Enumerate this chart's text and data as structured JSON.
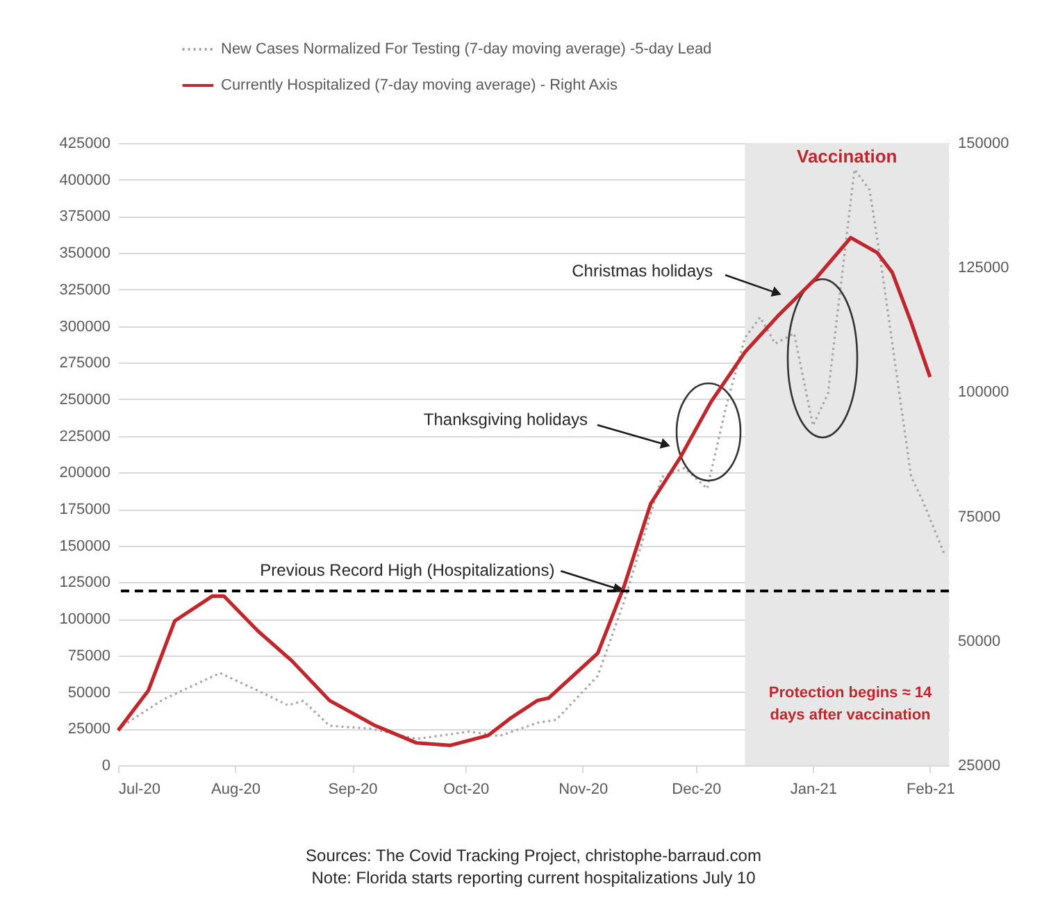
{
  "chart_data": {
    "type": "line",
    "xlim": [
      "2020-07-01",
      "2021-02-06"
    ],
    "xticks": [
      {
        "value": "2020-07-01",
        "label": "Jul-20"
      },
      {
        "value": "2020-08-01",
        "label": "Aug-20"
      },
      {
        "value": "2020-09-01",
        "label": "Sep-20"
      },
      {
        "value": "2020-10-01",
        "label": "Oct-20"
      },
      {
        "value": "2020-11-01",
        "label": "Nov-20"
      },
      {
        "value": "2020-12-01",
        "label": "Dec-20"
      },
      {
        "value": "2021-01-01",
        "label": "Jan-21"
      },
      {
        "value": "2021-02-01",
        "label": "Feb-21"
      }
    ],
    "ylim": [
      0,
      425000
    ],
    "yticks": [
      0,
      25000,
      50000,
      75000,
      100000,
      125000,
      150000,
      175000,
      200000,
      225000,
      250000,
      275000,
      300000,
      325000,
      350000,
      375000,
      400000,
      425000
    ],
    "y2lim": [
      25000,
      150000
    ],
    "y2ticks": [
      25000,
      50000,
      75000,
      100000,
      125000,
      150000
    ],
    "grid": "y",
    "legend": "top",
    "series": [
      {
        "name": "New Cases Normalized For Testing (7-day moving average) -5-day Lead",
        "color": "#a6a6a6",
        "line_style": "dotted",
        "x": [
          "2020-07-01",
          "2020-07-13",
          "2020-07-28",
          "2020-08-07",
          "2020-08-15",
          "2020-08-19",
          "2020-08-26",
          "2020-09-06",
          "2020-09-18",
          "2020-10-02",
          "2020-10-10",
          "2020-10-20",
          "2020-10-25",
          "2020-11-05",
          "2020-11-12",
          "2020-11-22",
          "2020-11-28",
          "2020-12-04",
          "2020-12-09",
          "2020-12-14",
          "2020-12-18",
          "2020-12-22",
          "2020-12-27",
          "2021-01-01",
          "2021-01-05",
          "2021-01-12",
          "2021-01-16",
          "2021-01-19",
          "2021-01-27",
          "2021-01-30",
          "2021-02-05"
        ],
        "values": [
          25000,
          45000,
          63000,
          51000,
          41000,
          44000,
          27000,
          25000,
          18000,
          23000,
          20000,
          29000,
          31000,
          61000,
          112000,
          197000,
          203000,
          189000,
          245000,
          292000,
          306000,
          288000,
          295000,
          232000,
          254000,
          407000,
          393000,
          343000,
          197000,
          181000,
          143000
        ]
      },
      {
        "name": "Currently Hospitalized (7-day moving average) - Right Axis",
        "color": "#c0272d",
        "line_style": "solid",
        "axis": "y2",
        "x": [
          "2020-07-01",
          "2020-07-09",
          "2020-07-16",
          "2020-07-26",
          "2020-07-29",
          "2020-08-07",
          "2020-08-16",
          "2020-08-26",
          "2020-09-07",
          "2020-09-18",
          "2020-09-27",
          "2020-10-07",
          "2020-10-13",
          "2020-10-20",
          "2020-10-23",
          "2020-11-05",
          "2020-11-12",
          "2020-11-19",
          "2020-11-27",
          "2020-12-05",
          "2020-12-14",
          "2020-12-23",
          "2021-01-02",
          "2021-01-11",
          "2021-01-18",
          "2021-01-22",
          "2021-01-27",
          "2021-02-01"
        ],
        "values": [
          32000,
          40000,
          54000,
          59000,
          59000,
          52000,
          46000,
          38000,
          33000,
          29500,
          29000,
          31000,
          34500,
          38000,
          38500,
          47500,
          61000,
          77500,
          87000,
          98000,
          108000,
          115500,
          123000,
          131000,
          128000,
          124000,
          114000,
          103000
        ]
      }
    ],
    "ref_lines": [
      {
        "axis": "y2",
        "value": 60000,
        "color": "#000000",
        "line_style": "dashed"
      }
    ],
    "bands": [
      {
        "axis": "x",
        "from": "2020-12-14",
        "to": "2021-02-06",
        "label": "Vaccination",
        "color": "#e7e7e7"
      }
    ],
    "annotations": [
      {
        "text": "Previous Record High (Hospitalizations)",
        "x": "2020-11-12",
        "y": 119000
      },
      "Thanksgiving holidays",
      "Christmas holidays",
      "Protection begins ≈ 14 days after vaccination",
      "Sources: The Covid Tracking Project, christophe-barraud.com",
      "Note: Florida starts reporting current hospitalizations July 10"
    ]
  }
}
